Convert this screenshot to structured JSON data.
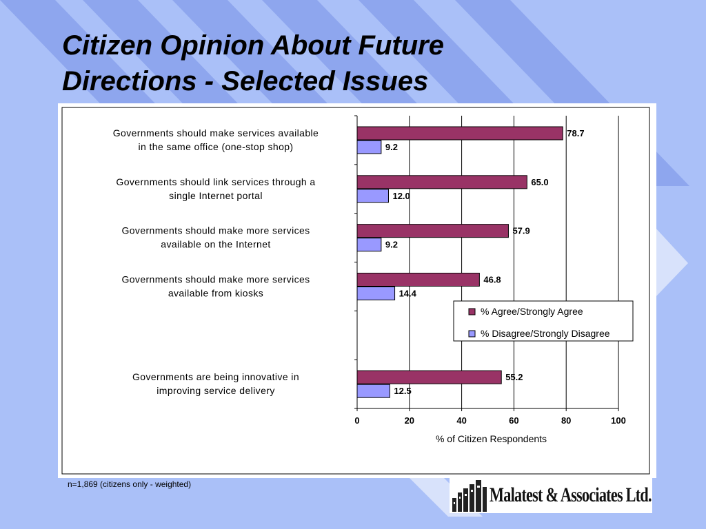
{
  "slide": {
    "title_line1": "Citizen Opinion About Future",
    "title_line2": "Directions - Selected Issues",
    "footnote": "n=1,869 (citizens only - weighted)",
    "logo_text": "Malatest & Associates Ltd."
  },
  "colors": {
    "background": "#aac0f8",
    "stripe": "#8ea6ee",
    "agree_bar": "#993366",
    "disagree_bar": "#9999ff"
  },
  "chart_data": {
    "type": "bar",
    "orientation": "horizontal",
    "categories": [
      [
        "Governments should make services available",
        "in the same office  (one-stop shop)"
      ],
      [
        "Governments should link services through a",
        "single Internet portal"
      ],
      [
        "Governments should make more services",
        "available on the Internet"
      ],
      [
        "Governments should make more services",
        "available from kiosks"
      ],
      [],
      [
        "Governments are being innovative in",
        "improving service delivery"
      ]
    ],
    "series": [
      {
        "name": "% Agree/Strongly Agree",
        "values": [
          78.7,
          65.0,
          57.9,
          46.8,
          null,
          55.2
        ],
        "labels": [
          "78.7",
          "65.0",
          "57.9",
          "46.8",
          "",
          "55.2"
        ]
      },
      {
        "name": "% Disagree/Strongly Disagree",
        "values": [
          9.2,
          12.0,
          9.2,
          14.4,
          null,
          12.5
        ],
        "labels": [
          "9.2",
          "12.0",
          "9.2",
          "14.4",
          "",
          "12.5"
        ]
      }
    ],
    "xlabel": "% of Citizen Respondents",
    "xlim": [
      0,
      100
    ],
    "xticks": [
      "0",
      "20",
      "40",
      "60",
      "80",
      "100"
    ],
    "grid": "vertical",
    "legend_position": "right, between kiosks and innovation rows"
  }
}
